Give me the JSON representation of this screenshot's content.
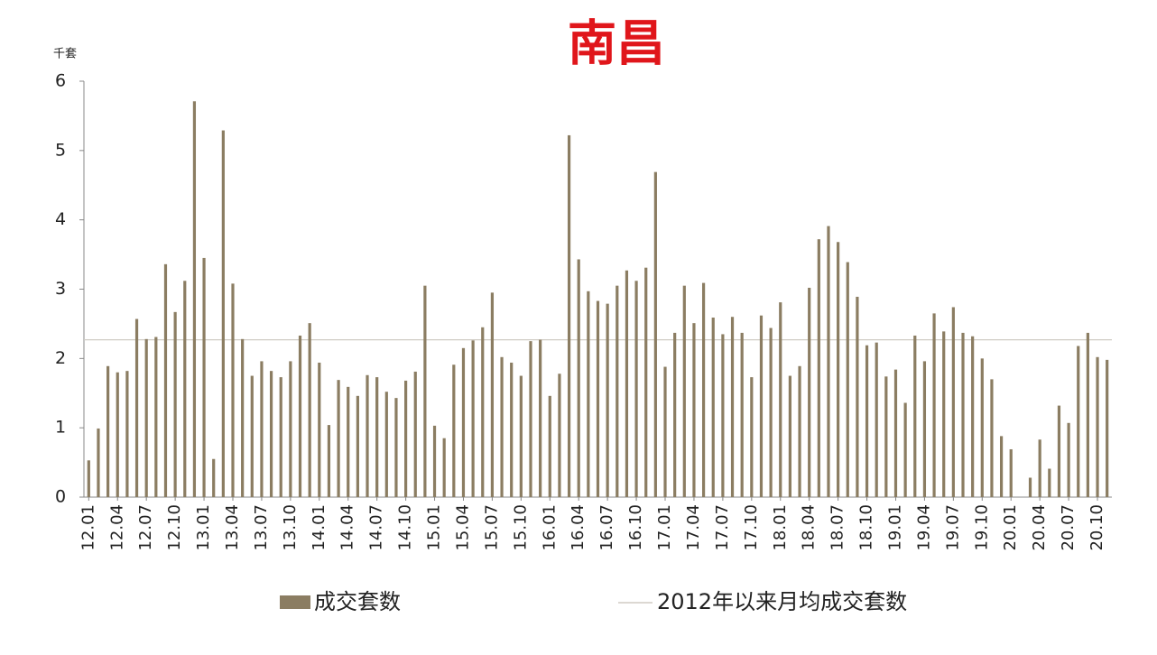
{
  "chart_data": {
    "type": "bar",
    "title": "南昌",
    "y_unit": "千套",
    "categories": [
      "12.01",
      null,
      null,
      "12.04",
      null,
      null,
      "12.07",
      null,
      null,
      "12.10",
      null,
      null,
      "13.01",
      null,
      null,
      "13.04",
      null,
      null,
      "13.07",
      null,
      null,
      "13.10",
      null,
      null,
      "14.01",
      null,
      null,
      "14.04",
      null,
      null,
      "14.07",
      null,
      null,
      "14.10",
      null,
      null,
      "15.01",
      null,
      null,
      "15.04",
      null,
      null,
      "15.07",
      null,
      null,
      "15.10",
      null,
      null,
      "16.01",
      null,
      null,
      "16.04",
      null,
      null,
      "16.07",
      null,
      null,
      "16.10",
      null,
      null,
      "17.01",
      null,
      null,
      "17.04",
      null,
      null,
      "17.07",
      null,
      null,
      "17.10",
      null,
      null,
      "18.01",
      null,
      null,
      "18.04",
      null,
      null,
      "18.07",
      null,
      null,
      "18.10",
      null,
      null,
      "19.01",
      null,
      null,
      "19.04",
      null,
      null,
      "19.07",
      null,
      null,
      "19.10",
      null,
      null,
      "20.01",
      null,
      null,
      "20.04",
      null,
      null,
      "20.07",
      null,
      null,
      "20.10",
      null
    ],
    "series": [
      {
        "name": "成交套数",
        "color": "#8b7d62",
        "values": [
          0.53,
          0.99,
          1.89,
          1.8,
          1.82,
          2.57,
          2.28,
          2.31,
          3.36,
          2.67,
          3.12,
          5.71,
          3.45,
          0.55,
          5.29,
          3.08,
          2.28,
          1.75,
          1.96,
          1.82,
          1.73,
          1.96,
          2.33,
          2.51,
          1.94,
          1.04,
          1.69,
          1.59,
          1.46,
          1.76,
          1.73,
          1.52,
          1.43,
          1.68,
          1.81,
          3.05,
          1.03,
          0.85,
          1.91,
          2.15,
          2.26,
          2.45,
          2.95,
          2.02,
          1.94,
          1.75,
          2.25,
          2.27,
          1.46,
          1.78,
          5.22,
          3.43,
          2.97,
          2.83,
          2.79,
          3.05,
          3.27,
          3.12,
          3.31,
          4.69,
          1.88,
          2.37,
          3.05,
          2.51,
          3.09,
          2.59,
          2.35,
          2.6,
          2.37,
          1.73,
          2.62,
          2.44,
          2.81,
          1.75,
          1.89,
          3.02,
          3.72,
          3.91,
          3.68,
          3.39,
          2.89,
          2.19,
          2.23,
          1.74,
          1.84,
          1.36,
          2.33,
          1.96,
          2.65,
          2.39,
          2.74,
          2.37,
          2.32,
          2.0,
          1.7,
          0.88,
          0.69,
          0,
          0.28,
          0.83,
          0.41,
          1.32,
          1.07,
          2.18,
          2.37,
          2.02,
          1.98
        ]
      }
    ],
    "reference_line": {
      "name": "2012年以来月均成交套数",
      "value": 2.27,
      "color": "#d0ccc4"
    },
    "ylim": [
      0,
      6
    ],
    "yticks": [
      0,
      1,
      2,
      3,
      4,
      5,
      6
    ],
    "grid": false
  }
}
